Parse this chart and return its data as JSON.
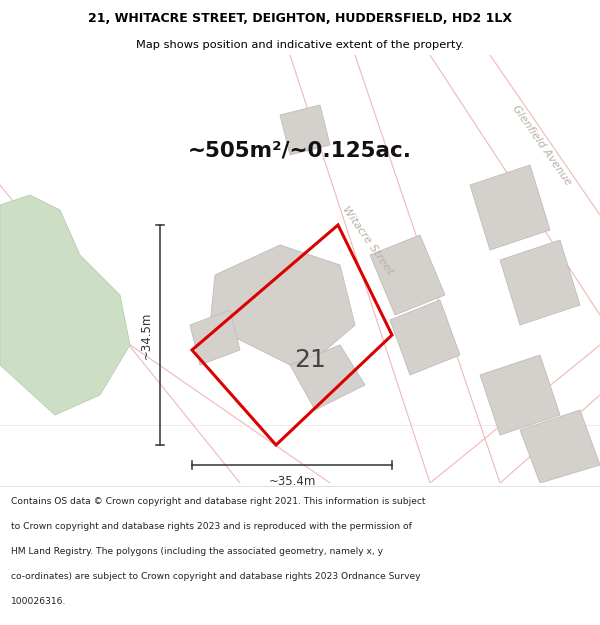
{
  "title_line1": "21, WHITACRE STREET, DEIGHTON, HUDDERSFIELD, HD2 1LX",
  "title_line2": "Map shows position and indicative extent of the property.",
  "area_text": "~505m²/~0.125ac.",
  "number_label": "21",
  "dim_horizontal": "~35.4m",
  "dim_vertical": "~34.5m",
  "street_label1": "Witacre Street",
  "street_label2": "Glenfield Avenue",
  "footer_lines": [
    "Contains OS data © Crown copyright and database right 2021. This information is subject",
    "to Crown copyright and database rights 2023 and is reproduced with the permission of",
    "HM Land Registry. The polygons (including the associated geometry, namely x, y",
    "co-ordinates) are subject to Crown copyright and database rights 2023 Ordnance Survey",
    "100026316."
  ],
  "map_bg": "#f8f7f5",
  "footer_bg": "#ffffff",
  "red_color": "#dd0000",
  "gray_building": "#d4d0cc",
  "gray_building_edge": "#c0bcb8",
  "green_area": "#ccdec4",
  "green_edge": "#b4c8a8",
  "pink_road": "#f0b8b8",
  "dim_line_color": "#333333",
  "title_color": "#000000",
  "street_text_color": "#b8b0a4",
  "number_color": "#444444",
  "area_color": "#111111",
  "title_fontsize": 9.0,
  "subtitle_fontsize": 8.2,
  "area_fontsize": 15.5,
  "number_fontsize": 18,
  "street_fontsize": 8.0,
  "dim_fontsize": 8.5,
  "footer_fontsize": 6.6
}
